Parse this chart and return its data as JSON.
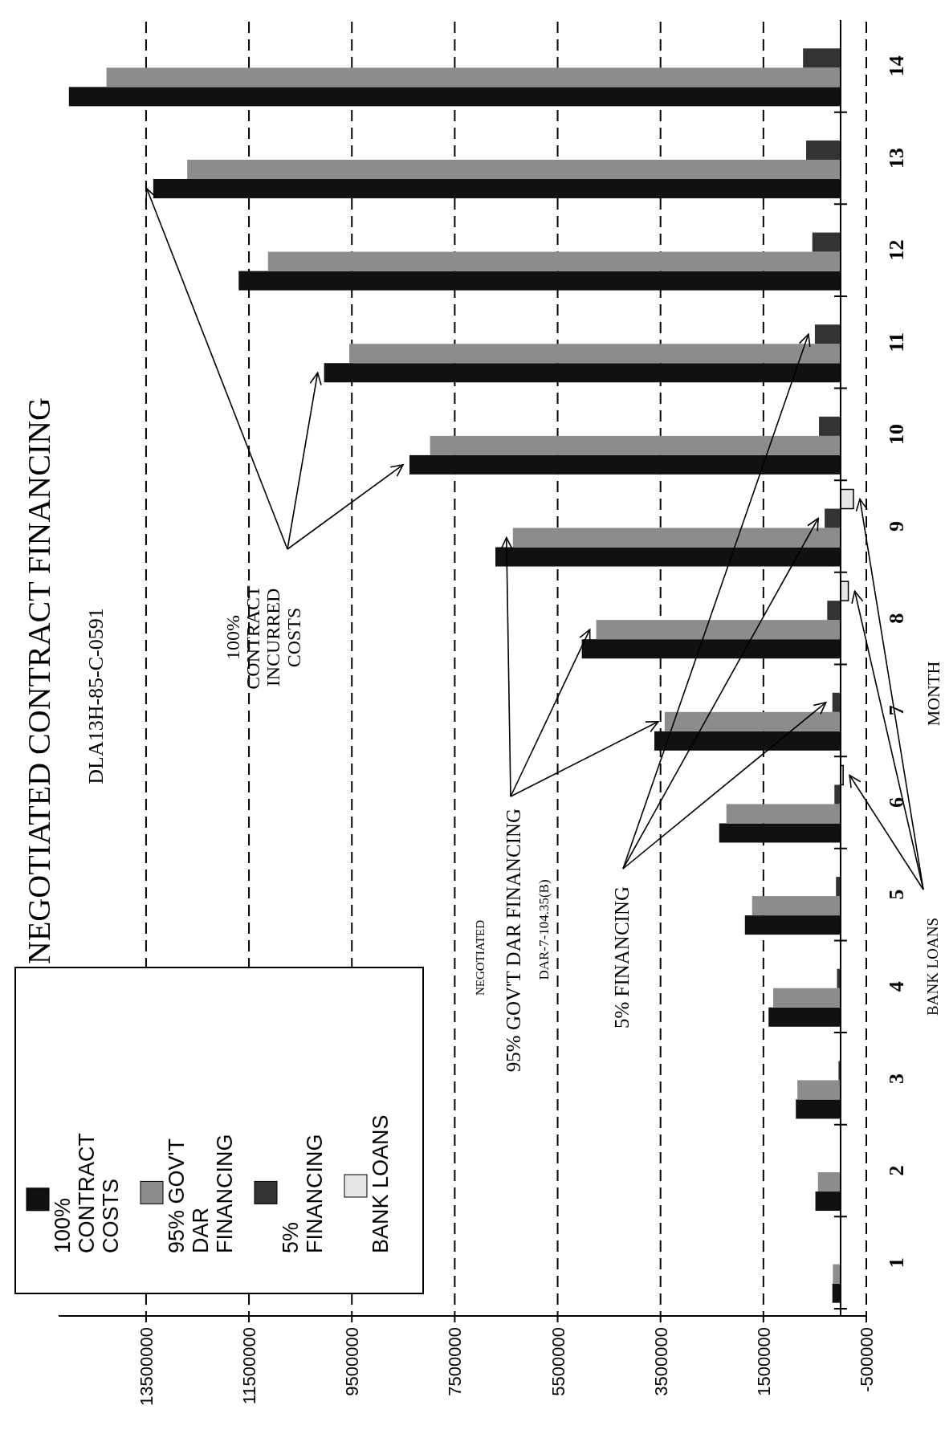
{
  "chart_data": {
    "type": "bar",
    "orientation": "horizontal",
    "title": "NEGOTIATED CONTRACT FINANCING",
    "subtitle": "DLA13H-85-C-0591",
    "ylabel": "MONTH",
    "categories": [
      "14",
      "13",
      "12",
      "11",
      "10",
      "9",
      "8",
      "7",
      "6",
      "5",
      "4",
      "3",
      "2",
      "1"
    ],
    "series": [
      {
        "name": "100% CONTRACT COSTS",
        "color": "#111111",
        "values": [
          15000000,
          13360000,
          11700000,
          10040000,
          8380000,
          6710000,
          5030000,
          3620000,
          2360000,
          1860000,
          1400000,
          870000,
          490000,
          160000
        ]
      },
      {
        "name": "95% GOV'T DAR FINANCING",
        "color": "#8c8c8c",
        "values": [
          14270000,
          12700000,
          11130000,
          9550000,
          7980000,
          6370000,
          4750000,
          3420000,
          2220000,
          1720000,
          1310000,
          840000,
          440000,
          150000
        ]
      },
      {
        "name": "5% FINANCING",
        "color": "#333333",
        "values": [
          730000,
          670000,
          550000,
          500000,
          420000,
          310000,
          260000,
          160000,
          120000,
          90000,
          70000,
          40000,
          null,
          10000
        ]
      },
      {
        "name": "BANK LOANS",
        "color": "#e6e6e6",
        "values": [
          null,
          null,
          null,
          null,
          null,
          -250000,
          -150000,
          null,
          -50000,
          null,
          null,
          null,
          null,
          null
        ]
      }
    ],
    "xlim": [
      15200000,
      -500000
    ],
    "xticks": [
      13500000,
      11500000,
      9500000,
      7500000,
      5500000,
      3500000,
      1500000,
      -500000
    ],
    "grid": "x",
    "legend": "bottom left",
    "annotations": [
      "100% CONTRACT INCURRED COSTS",
      "NEGOTIATED",
      "95% GOV'T DAR FINANCING",
      "DAR-7-104.35(B)",
      "5% FINANCING",
      "BANK LOANS"
    ]
  }
}
